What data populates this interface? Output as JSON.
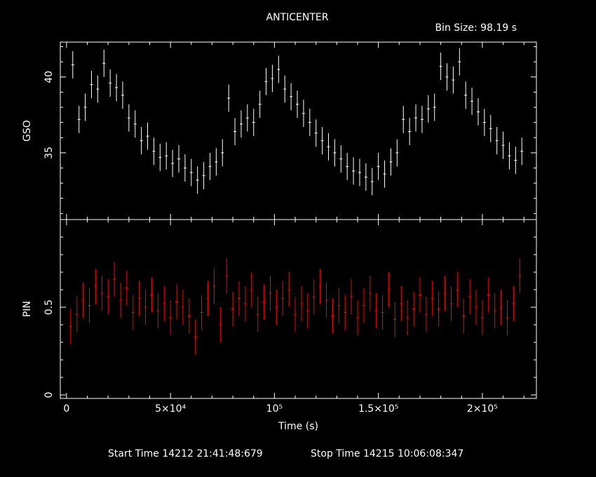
{
  "title": "ANTICENTER",
  "bin_size": "Bin Size: 98.19 s",
  "footer": {
    "start": "Start Time 14212 21:41:48:679",
    "stop": "Stop Time 14215 10:06:08:347"
  },
  "colors": {
    "background": "#000000",
    "axes": "#ffffff",
    "gso": "#ffffff",
    "pin": "#ff0000"
  },
  "chart_data": [
    {
      "type": "scatter",
      "title": "ANTICENTER",
      "ylabel": "GSO",
      "xlabel": "",
      "xlim": [
        -3000,
        226000
      ],
      "ylim": [
        30.6,
        42.3
      ],
      "yticks": [
        35,
        40
      ],
      "ytick_labels": [
        "35",
        "40"
      ],
      "grid": false,
      "error_bars": true,
      "series": [
        {
          "x": [
            3000,
            6000,
            9000,
            12000,
            15000,
            18000,
            21000,
            24000,
            27000,
            30000,
            33000,
            36000,
            39000,
            42000,
            45000,
            48000,
            51000,
            54000,
            57000,
            60000,
            63000,
            66000,
            69000,
            72000,
            75000,
            78000,
            81000,
            84000,
            87000,
            90000,
            93000,
            96000,
            99000,
            102000,
            105000,
            108000,
            111000,
            114000,
            117000,
            120000,
            123000,
            126000,
            129000,
            132000,
            135000,
            138000,
            141000,
            144000,
            147000,
            150000,
            153000,
            156000,
            159000,
            162000,
            165000,
            168000,
            171000,
            174000,
            177000,
            180000,
            183000,
            186000,
            189000,
            192000,
            195000,
            198000,
            201000,
            204000,
            207000,
            210000,
            213000,
            216000,
            219000
          ],
          "y": [
            40.8,
            37.2,
            38.0,
            39.5,
            39.2,
            40.9,
            39.6,
            39.3,
            38.8,
            37.3,
            36.9,
            35.8,
            36.1,
            35.1,
            34.7,
            34.8,
            34.3,
            34.6,
            34.0,
            33.7,
            33.2,
            33.5,
            34.1,
            34.4,
            35.0,
            38.6,
            36.4,
            36.9,
            37.3,
            37.0,
            38.2,
            39.7,
            39.9,
            40.5,
            39.2,
            38.7,
            38.2,
            37.6,
            37.0,
            36.3,
            35.8,
            35.4,
            35.0,
            34.6,
            34.1,
            33.8,
            33.7,
            33.4,
            33.1,
            34.1,
            33.6,
            34.4,
            35.0,
            37.2,
            36.4,
            37.3,
            37.2,
            37.9,
            38.0,
            40.7,
            40.0,
            39.8,
            41.0,
            38.8,
            38.4,
            37.7,
            37.0,
            36.6,
            35.8,
            35.5,
            34.8,
            34.5,
            35.1
          ]
        }
      ]
    },
    {
      "type": "scatter",
      "ylabel": "PIN",
      "xlabel": "Time (s)",
      "xlim": [
        -3000,
        226000
      ],
      "ylim": [
        -0.02,
        1.0
      ],
      "xticks": [
        0,
        50000,
        100000,
        150000,
        200000
      ],
      "yticks": [
        0,
        0.5
      ],
      "ytick_labels": [
        "0",
        "0.5"
      ],
      "grid": false,
      "error_bars": true,
      "series": [
        {
          "x": [
            2000,
            5000,
            8000,
            11000,
            14000,
            17000,
            20000,
            23000,
            26000,
            29000,
            32000,
            35000,
            38000,
            41000,
            44000,
            47000,
            50000,
            53000,
            56000,
            59000,
            62000,
            65000,
            68000,
            71000,
            74000,
            77000,
            80000,
            83000,
            86000,
            89000,
            92000,
            95000,
            98000,
            101000,
            104000,
            107000,
            110000,
            113000,
            116000,
            119000,
            122000,
            125000,
            128000,
            131000,
            134000,
            137000,
            140000,
            143000,
            146000,
            149000,
            152000,
            155000,
            158000,
            161000,
            164000,
            167000,
            170000,
            173000,
            176000,
            179000,
            182000,
            185000,
            188000,
            191000,
            194000,
            197000,
            200000,
            203000,
            206000,
            209000,
            212000,
            215000,
            218000
          ],
          "y": [
            0.39,
            0.46,
            0.54,
            0.51,
            0.62,
            0.58,
            0.56,
            0.66,
            0.54,
            0.61,
            0.47,
            0.55,
            0.5,
            0.57,
            0.48,
            0.52,
            0.44,
            0.53,
            0.5,
            0.45,
            0.33,
            0.47,
            0.55,
            0.62,
            0.4,
            0.68,
            0.49,
            0.55,
            0.52,
            0.6,
            0.46,
            0.53,
            0.58,
            0.5,
            0.55,
            0.6,
            0.46,
            0.52,
            0.48,
            0.56,
            0.62,
            0.54,
            0.45,
            0.51,
            0.47,
            0.56,
            0.44,
            0.51,
            0.58,
            0.48,
            0.47,
            0.6,
            0.43,
            0.52,
            0.44,
            0.49,
            0.57,
            0.46,
            0.55,
            0.49,
            0.58,
            0.52,
            0.6,
            0.45,
            0.56,
            0.5,
            0.44,
            0.57,
            0.48,
            0.5,
            0.44,
            0.52,
            0.68
          ]
        }
      ]
    }
  ]
}
